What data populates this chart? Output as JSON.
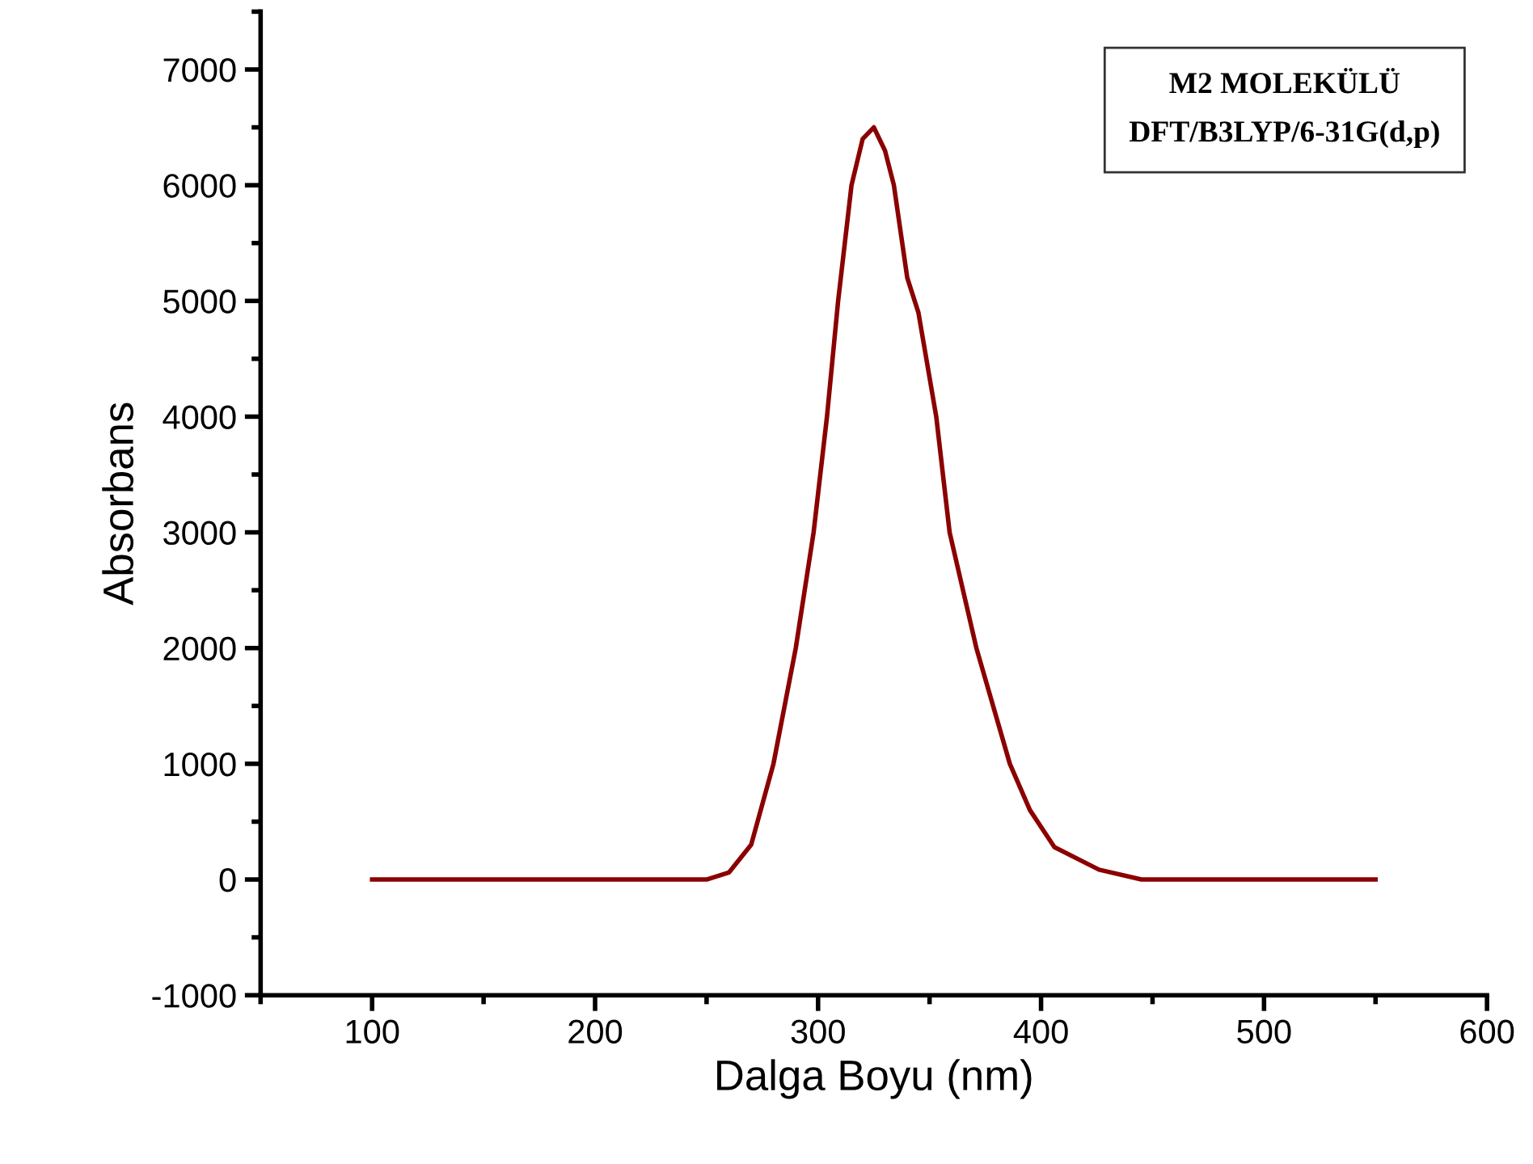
{
  "chart_data": {
    "type": "line",
    "xlabel": "Dalga Boyu (nm)",
    "ylabel": "Absorbans",
    "annotations": [
      "M2 MOLEKÜLÜ\nDFT/B3LYP/6-31G(d,p)"
    ],
    "series": [
      {
        "color": "#8b0000",
        "x": [
          100,
          250,
          260,
          270,
          280,
          290,
          298,
          304,
          309,
          315,
          320,
          325,
          330,
          334,
          340,
          345,
          353,
          359,
          371,
          386,
          395,
          406,
          426,
          445,
          550
        ],
        "values": [
          0,
          0,
          60,
          300,
          1000,
          2000,
          3000,
          4000,
          5000,
          6000,
          6400,
          6500,
          6300,
          6000,
          5200,
          4900,
          4000,
          3000,
          2000,
          1000,
          600,
          280,
          85,
          0,
          0
        ]
      }
    ],
    "xlim": [
      50,
      600
    ],
    "xticks": [
      100,
      200,
      300,
      400,
      500,
      600
    ],
    "ylim": [
      -1000,
      7500
    ],
    "yticks": [
      -1000,
      0,
      1000,
      2000,
      3000,
      4000,
      5000,
      6000,
      7000
    ],
    "grid": false,
    "legend": false,
    "marker": "none",
    "line_style": "solid"
  }
}
